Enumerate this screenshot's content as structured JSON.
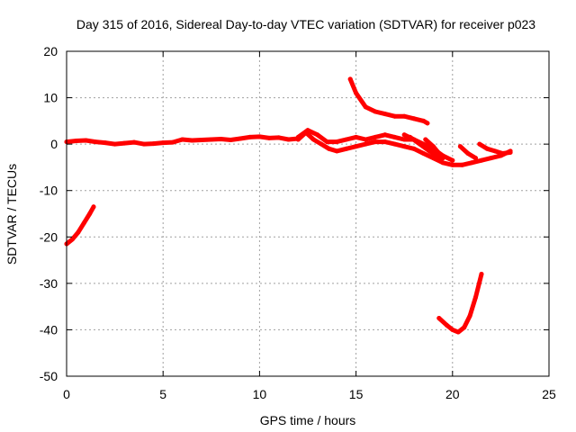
{
  "chart_data": {
    "type": "line",
    "title": "Day 315 of 2016, Sidereal Day-to-day VTEC variation (SDTVAR) for receiver p023",
    "xlabel": "GPS time / hours",
    "ylabel": "SDTVAR / TECUs",
    "xlim": [
      0,
      25
    ],
    "ylim": [
      -50,
      20
    ],
    "xticks": [
      0,
      5,
      10,
      15,
      20,
      25
    ],
    "yticks": [
      -50,
      -40,
      -30,
      -20,
      -10,
      0,
      10,
      20
    ],
    "xtick_labels": [
      "0",
      "5",
      "10",
      "15",
      "20",
      "25"
    ],
    "ytick_labels": [
      "-50",
      "-40",
      "-30",
      "-20",
      "-10",
      "0",
      "10",
      "20"
    ],
    "grid": true,
    "legend": "none",
    "series_color": "#ff0000",
    "series": [
      {
        "x": [
          0.0,
          0.3,
          0.6,
          0.9,
          1.2,
          1.4
        ],
        "y": [
          -21.5,
          -20.5,
          -19.0,
          -17.0,
          -15.0,
          -13.5
        ]
      },
      {
        "x": [
          0.0,
          0.5,
          1.0,
          1.5,
          2.0,
          2.5,
          3.0,
          3.5,
          4.0,
          4.5,
          5.0,
          5.5,
          6.0,
          6.5,
          7.0,
          7.5,
          8.0,
          8.5,
          9.0,
          9.5,
          10.0,
          10.5,
          11.0,
          11.5,
          12.0
        ],
        "y": [
          0.5,
          0.7,
          0.8,
          0.5,
          0.3,
          0.0,
          0.2,
          0.4,
          0.0,
          0.1,
          0.3,
          0.4,
          1.0,
          0.8,
          0.9,
          1.0,
          1.1,
          0.9,
          1.2,
          1.5,
          1.6,
          1.3,
          1.4,
          1.0,
          1.2
        ]
      },
      {
        "x": [
          12.0,
          12.4,
          12.8,
          13.2,
          13.6,
          14.0,
          14.5,
          15.0,
          15.5,
          16.0,
          16.5,
          17.0,
          17.5,
          18.0,
          18.5,
          19.0,
          19.5,
          20.0,
          20.5,
          21.0,
          21.5,
          22.0,
          22.5,
          23.0
        ],
        "y": [
          1.0,
          2.5,
          1.0,
          0.0,
          -1.0,
          -1.5,
          -1.0,
          -0.5,
          0.0,
          0.5,
          0.5,
          0.0,
          -0.5,
          -1.0,
          -2.0,
          -3.0,
          -4.0,
          -4.5,
          -4.5,
          -4.0,
          -3.5,
          -3.0,
          -2.5,
          -1.5
        ]
      },
      {
        "x": [
          12.0,
          12.5,
          13.0,
          13.5,
          14.0,
          14.5,
          15.0,
          15.5,
          16.0,
          16.5,
          17.0,
          17.5,
          18.0,
          18.5,
          19.0,
          19.5,
          20.0
        ],
        "y": [
          1.5,
          3.0,
          2.0,
          0.5,
          0.5,
          1.0,
          1.5,
          1.0,
          1.5,
          2.0,
          1.5,
          1.0,
          1.0,
          0.0,
          -1.0,
          -2.5,
          -3.5
        ]
      },
      {
        "x": [
          17.5,
          18.0,
          18.5,
          19.0,
          19.5
        ],
        "y": [
          2.0,
          1.0,
          -0.5,
          -2.0,
          -3.0
        ]
      },
      {
        "x": [
          17.8,
          18.3,
          18.8,
          19.2
        ],
        "y": [
          1.5,
          0.0,
          -1.5,
          -2.5
        ]
      },
      {
        "x": [
          18.6,
          19.0,
          19.3,
          19.5
        ],
        "y": [
          1.0,
          -0.5,
          -2.0,
          -3.0
        ]
      },
      {
        "x": [
          20.4,
          20.8,
          21.2
        ],
        "y": [
          -0.5,
          -2.0,
          -3.0
        ]
      },
      {
        "x": [
          21.4,
          21.8,
          22.2,
          22.6,
          23.0
        ],
        "y": [
          0.0,
          -1.0,
          -1.5,
          -2.0,
          -1.8
        ]
      },
      {
        "x": [
          14.7,
          15.0,
          15.5,
          16.0,
          16.5,
          17.0,
          17.5,
          18.0,
          18.5,
          18.7
        ],
        "y": [
          14.0,
          11.0,
          8.0,
          7.0,
          6.5,
          6.0,
          6.0,
          5.5,
          5.0,
          4.5
        ]
      },
      {
        "x": [
          19.3,
          19.7,
          20.0,
          20.3,
          20.6,
          20.9,
          21.2,
          21.5
        ],
        "y": [
          -37.5,
          -39.0,
          -40.0,
          -40.5,
          -39.5,
          -37.0,
          -33.0,
          -28.0
        ]
      }
    ]
  }
}
